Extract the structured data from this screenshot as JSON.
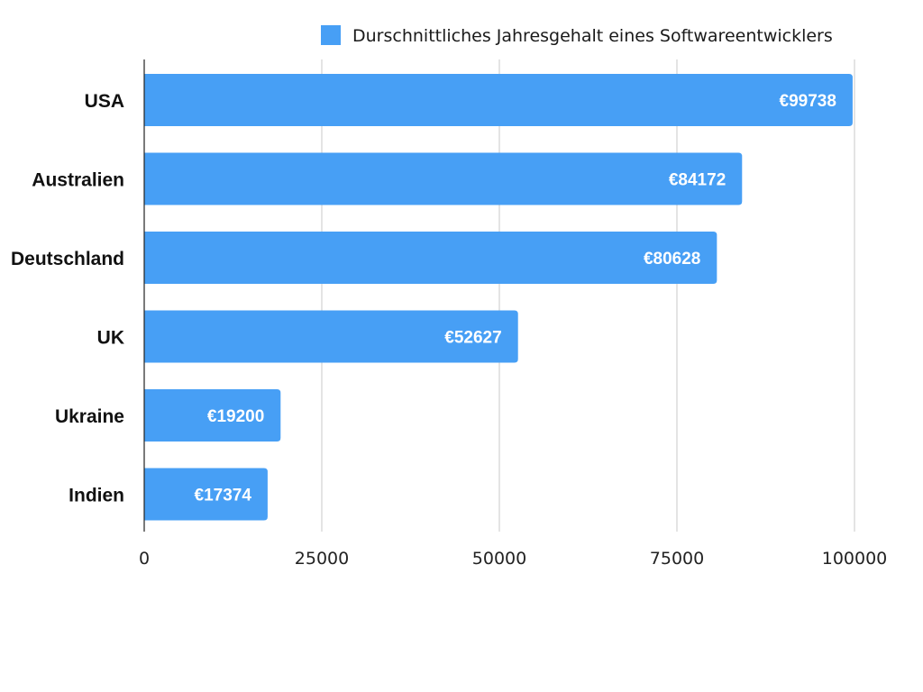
{
  "colors": {
    "bar": "#479ff5",
    "grid": "#c8c8c8",
    "axis": "#222222"
  },
  "chart_data": {
    "type": "bar",
    "orientation": "horizontal",
    "categories": [
      "USA",
      "Australien",
      "Deutschland",
      "UK",
      "Ukraine",
      "Indien"
    ],
    "series": [
      {
        "name": "Durschnittliches Jahresgehalt eines Softwareentwicklers",
        "values": [
          99738,
          84172,
          80628,
          52627,
          19200,
          17374
        ],
        "data_labels": [
          "€99738",
          "€84172",
          "€80628",
          "€52627",
          "€19200",
          "€17374"
        ]
      }
    ],
    "x_ticks": [
      "0",
      "25000",
      "50000",
      "75000",
      "100000"
    ],
    "xlim": [
      0,
      100000
    ],
    "grid": true,
    "legend_position": "top-right"
  }
}
